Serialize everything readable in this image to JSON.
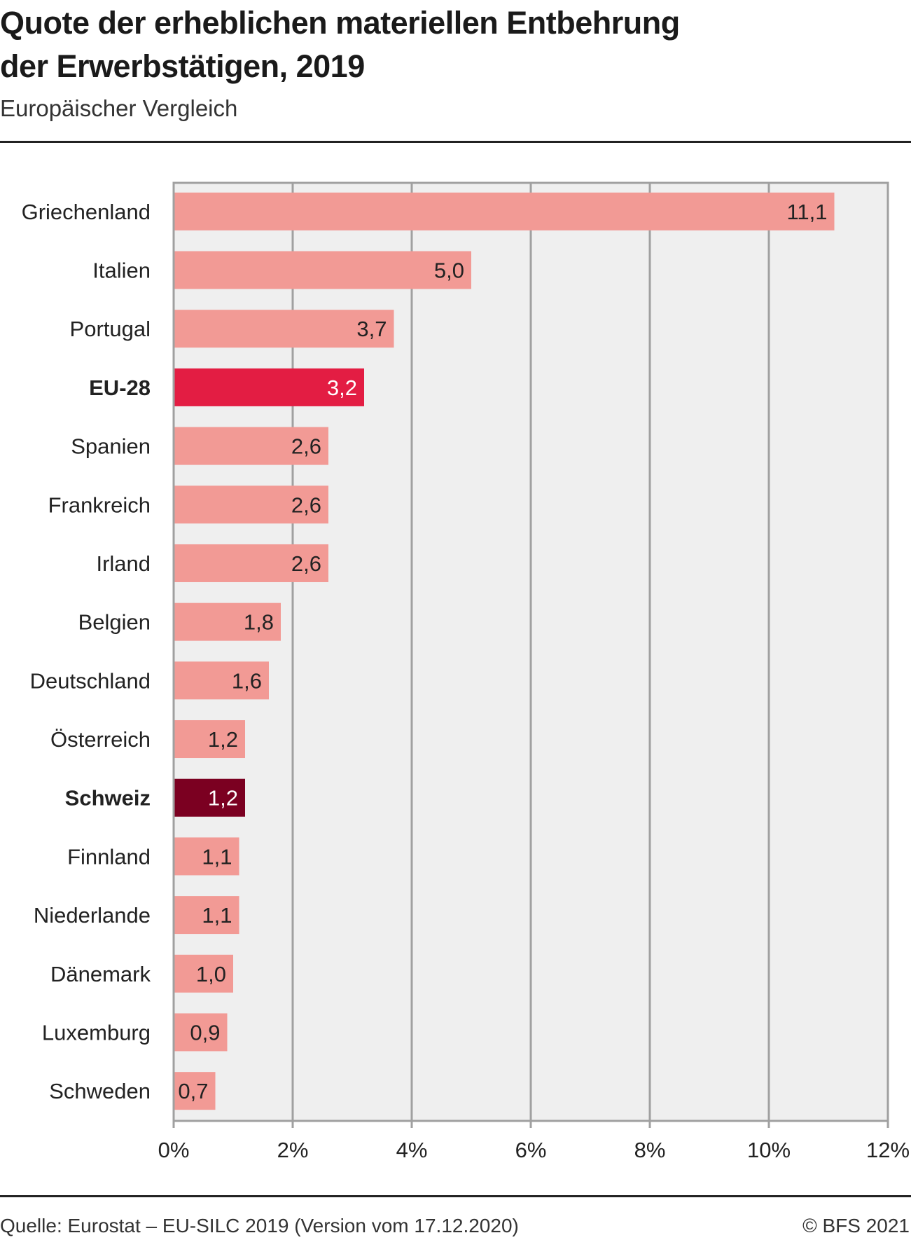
{
  "header": {
    "title_line1": "Quote der erheblichen materiellen Entbehrung",
    "title_line2": "der Erwerbstätigen, 2019",
    "subtitle": "Europäischer Vergleich"
  },
  "footer": {
    "source": "Quelle: Eurostat – EU-SILC 2019 (Version vom 17.12.2020)",
    "copyright": "© BFS 2021"
  },
  "colors": {
    "default_bar": "#f29a95",
    "eu_bar": "#e31d43",
    "ch_bar": "#7b0021",
    "plot_bg": "#efefef",
    "grid": "#a0a0a0"
  },
  "chart_data": {
    "type": "bar",
    "orientation": "horizontal",
    "title": "Quote der erheblichen materiellen Entbehrung der Erwerbstätigen, 2019",
    "subtitle": "Europäischer Vergleich",
    "xlabel": "",
    "ylabel": "",
    "xlim": [
      0,
      12
    ],
    "grid": true,
    "x_ticks": [
      0,
      2,
      4,
      6,
      8,
      10,
      12
    ],
    "x_tick_labels": [
      "0%",
      "2%",
      "4%",
      "6%",
      "8%",
      "10%",
      "12%"
    ],
    "categories": [
      "Griechenland",
      "Italien",
      "Portugal",
      "EU-28",
      "Spanien",
      "Frankreich",
      "Irland",
      "Belgien",
      "Deutschland",
      "Österreich",
      "Schweiz",
      "Finnland",
      "Niederlande",
      "Dänemark",
      "Luxemburg",
      "Schweden"
    ],
    "values": [
      11.1,
      5.0,
      3.7,
      3.2,
      2.6,
      2.6,
      2.6,
      1.8,
      1.6,
      1.2,
      1.2,
      1.1,
      1.1,
      1.0,
      0.9,
      0.7
    ],
    "value_labels": [
      "11,1",
      "5,0",
      "3,7",
      "3,2",
      "2,6",
      "2,6",
      "2,6",
      "1,8",
      "1,6",
      "1,2",
      "1,2",
      "1,1",
      "1,1",
      "1,0",
      "0,9",
      "0,7"
    ],
    "highlight": {
      "EU-28": "eu",
      "Schweiz": "ch"
    }
  }
}
